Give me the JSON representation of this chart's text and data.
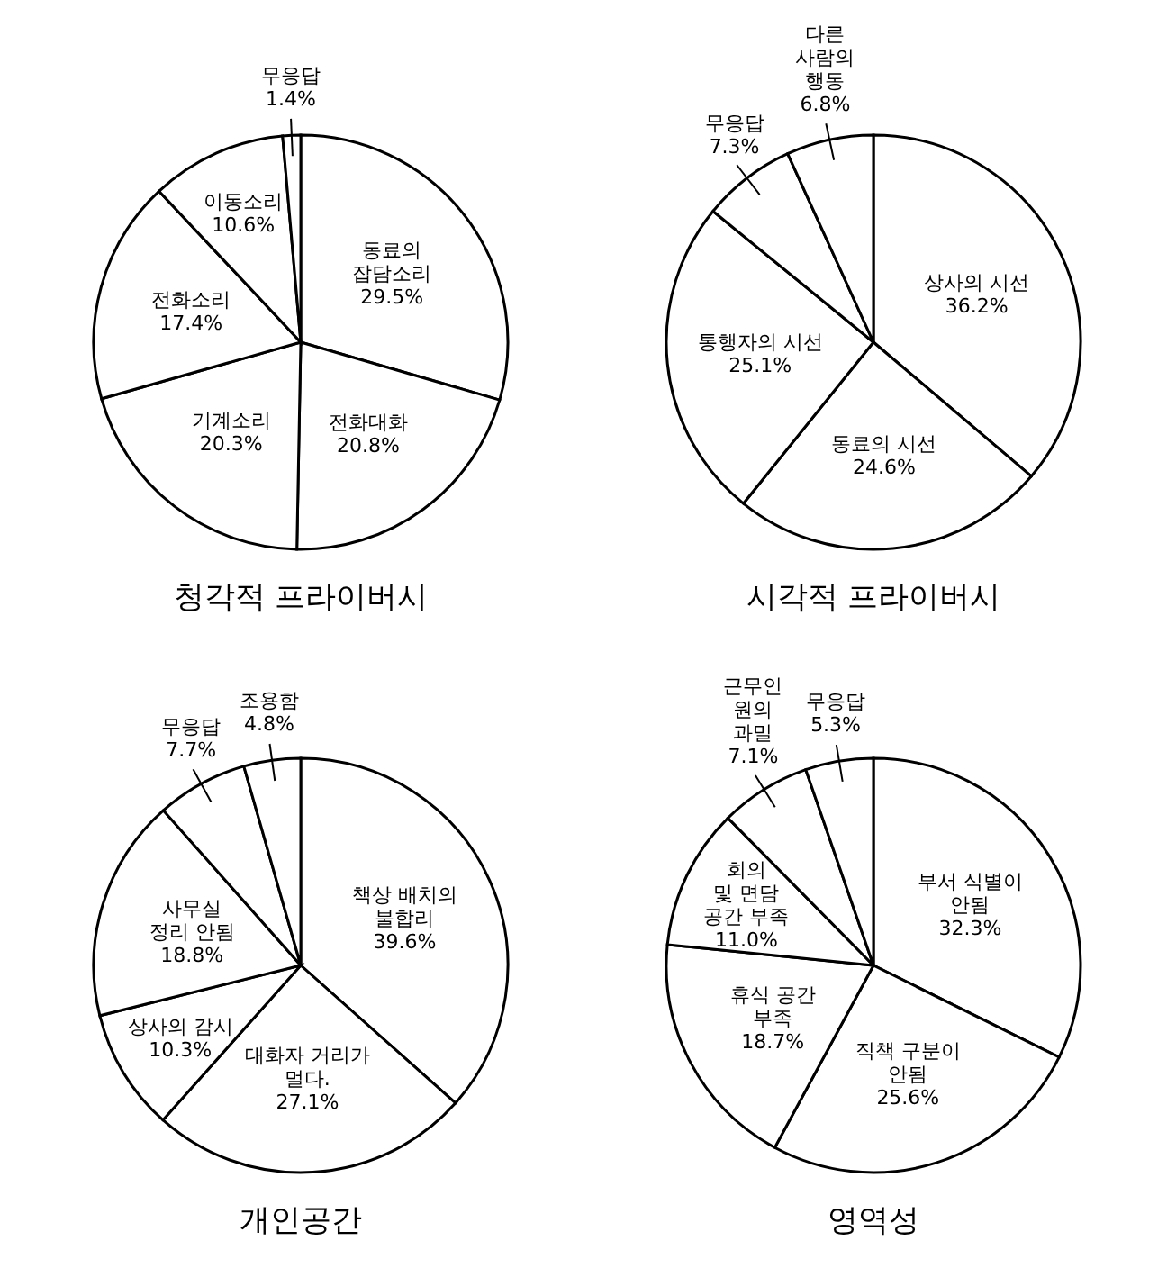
{
  "chart_data": [
    {
      "type": "pie",
      "title": "청각적 프라이버시",
      "categories": [
        "동료의\n잡담소리",
        "전화대화",
        "기계소리",
        "전화소리",
        "이동소리",
        "무응답"
      ],
      "values": [
        29.5,
        20.8,
        20.3,
        17.4,
        10.6,
        1.4
      ],
      "value_labels": [
        "29.5%",
        "20.8%",
        "20.3%",
        "17.4%",
        "10.6%",
        "1.4%"
      ],
      "colors": [
        "#ffffff",
        "#ffffff",
        "#ffffff",
        "#ffffff",
        "#ffffff",
        "#ffffff"
      ]
    },
    {
      "type": "pie",
      "title": "시각적 프라이버시",
      "categories": [
        "상사의 시선",
        "동료의 시선",
        "통행자의 시선",
        "무응답",
        "다른\n사람의\n행동"
      ],
      "values": [
        36.2,
        24.6,
        25.1,
        7.3,
        6.8
      ],
      "value_labels": [
        "36.2%",
        "24.6%",
        "25.1%",
        "7.3%",
        "6.8%"
      ],
      "colors": [
        "#ffffff",
        "#ffffff",
        "#ffffff",
        "#ffffff",
        "#ffffff"
      ]
    },
    {
      "type": "pie",
      "title": "개인공간",
      "categories": [
        "책상 배치의\n불합리",
        "대화자 거리가\n멀다.",
        "상사의 감시",
        "사무실\n정리 안됨",
        "무응답",
        "조용함"
      ],
      "values": [
        39.6,
        27.1,
        10.3,
        18.8,
        7.7,
        4.8
      ],
      "value_labels": [
        "39.6%",
        "27.1%",
        "10.3%",
        "18.8%",
        "7.7%",
        "4.8%"
      ],
      "colors": [
        "#ffffff",
        "#ffffff",
        "#ffffff",
        "#ffffff",
        "#ffffff",
        "#ffffff"
      ]
    },
    {
      "type": "pie",
      "title": "영역성",
      "categories": [
        "부서 식별이\n안됨",
        "직책 구분이\n안됨",
        "휴식 공간\n부족",
        "회의\n및 면담\n공간 부족",
        "근무인\n원의\n과밀",
        "무응답"
      ],
      "values": [
        32.3,
        25.6,
        18.7,
        11.0,
        7.1,
        5.3
      ],
      "value_labels": [
        "32.3%",
        "25.6%",
        "18.7%",
        "11.0%",
        "7.1%",
        "5.3%"
      ],
      "colors": [
        "#ffffff",
        "#ffffff",
        "#ffffff",
        "#ffffff",
        "#ffffff",
        "#ffffff"
      ]
    }
  ]
}
